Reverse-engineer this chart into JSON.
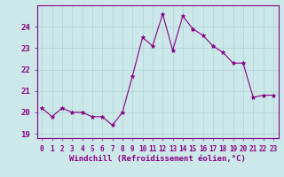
{
  "x": [
    0,
    1,
    2,
    3,
    4,
    5,
    6,
    7,
    8,
    9,
    10,
    11,
    12,
    13,
    14,
    15,
    16,
    17,
    18,
    19,
    20,
    21,
    22,
    23
  ],
  "y": [
    20.2,
    19.8,
    20.2,
    20.0,
    20.0,
    19.8,
    19.8,
    19.4,
    20.0,
    21.7,
    23.5,
    23.1,
    24.6,
    22.9,
    24.5,
    23.9,
    23.6,
    23.1,
    22.8,
    22.3,
    22.3,
    20.7,
    20.8,
    20.8
  ],
  "line_color": "#880088",
  "marker": "*",
  "marker_size": 3.5,
  "bg_color": "#cce8e8",
  "grid_color": "#b0d4d4",
  "xlabel": "Windchill (Refroidissement éolien,°C)",
  "xlim": [
    -0.5,
    23.5
  ],
  "ylim": [
    18.8,
    25.0
  ],
  "yticks": [
    19,
    20,
    21,
    22,
    23,
    24
  ],
  "xticks": [
    0,
    1,
    2,
    3,
    4,
    5,
    6,
    7,
    8,
    9,
    10,
    11,
    12,
    13,
    14,
    15,
    16,
    17,
    18,
    19,
    20,
    21,
    22,
    23
  ],
  "xlabel_fontsize": 6.5,
  "ytick_fontsize": 6.5,
  "xtick_fontsize": 5.5,
  "tick_color": "#880088",
  "spine_color": "#880088"
}
